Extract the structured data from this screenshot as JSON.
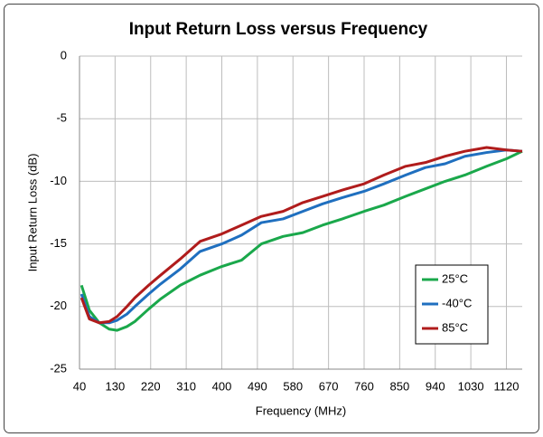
{
  "chart_data": {
    "type": "line",
    "title": "Input Return Loss versus Frequency",
    "xlabel": "Frequency (MHz)",
    "ylabel": "Input Return Loss (dB)",
    "x": [
      45,
      65,
      90,
      115,
      135,
      160,
      180,
      215,
      245,
      295,
      345,
      400,
      450,
      500,
      555,
      605,
      655,
      705,
      760,
      810,
      865,
      915,
      965,
      1015,
      1070,
      1120,
      1160
    ],
    "series": [
      {
        "name": "25°C",
        "color": "#1aa84b",
        "values": [
          -18.3,
          -20.3,
          -21.3,
          -21.8,
          -21.9,
          -21.6,
          -21.2,
          -20.2,
          -19.4,
          -18.3,
          -17.5,
          -16.8,
          -16.3,
          -15,
          -14.4,
          -14.1,
          -13.5,
          -13,
          -12.4,
          -11.9,
          -11.2,
          -10.6,
          -10,
          -9.5,
          -8.8,
          -8.2,
          -7.6
        ]
      },
      {
        "name": "-40°C",
        "color": "#1f6fbf",
        "values": [
          -19,
          -20.8,
          -21.3,
          -21.3,
          -21.1,
          -20.6,
          -20,
          -19,
          -18.2,
          -17,
          -15.6,
          -15,
          -14.3,
          -13.3,
          -13,
          -12.4,
          -11.8,
          -11.3,
          -10.8,
          -10.2,
          -9.5,
          -8.9,
          -8.6,
          -8,
          -7.7,
          -7.5,
          -7.6
        ]
      },
      {
        "name": "85°C",
        "color": "#b01c1c",
        "values": [
          -19.3,
          -21,
          -21.3,
          -21.2,
          -20.8,
          -20,
          -19.3,
          -18.3,
          -17.5,
          -16.2,
          -14.8,
          -14.2,
          -13.5,
          -12.8,
          -12.4,
          -11.7,
          -11.2,
          -10.7,
          -10.2,
          -9.5,
          -8.8,
          -8.5,
          -8,
          -7.6,
          -7.3,
          -7.5,
          -7.6
        ]
      }
    ],
    "xlim": [
      40,
      1160
    ],
    "xticks": [
      40,
      130,
      220,
      310,
      400,
      490,
      580,
      670,
      760,
      850,
      940,
      1030,
      1120
    ],
    "ylim": [
      -25,
      0
    ],
    "yticks": [
      -25,
      -20,
      -15,
      -10,
      -5,
      0
    ],
    "grid": true,
    "legend": "lower right"
  }
}
